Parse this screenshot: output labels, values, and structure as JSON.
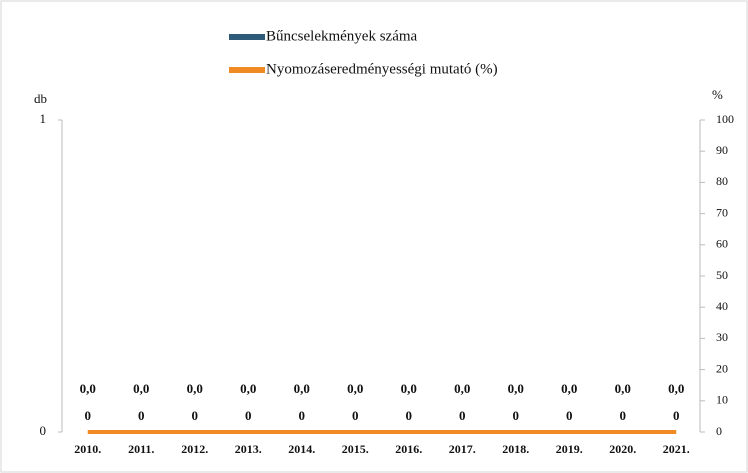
{
  "chart_data": {
    "type": "bar-line",
    "categories": [
      "2010.",
      "2011.",
      "2012.",
      "2013.",
      "2014.",
      "2015.",
      "2016.",
      "2017.",
      "2018.",
      "2019.",
      "2020.",
      "2021."
    ],
    "y_label": "db",
    "y2_label": "%",
    "series": [
      {
        "name": "Bűncselekmények száma",
        "type": "bar",
        "color": "#2e5b7a",
        "values": [
          0,
          0,
          0,
          0,
          0,
          0,
          0,
          0,
          0,
          0,
          0,
          0
        ]
      },
      {
        "name": "Nyomozáseredményességi mutató (%)",
        "type": "line",
        "axis": "y2",
        "color": "#f08a24",
        "values": [
          0,
          0,
          0,
          0,
          0,
          0,
          0,
          0,
          0,
          0,
          0,
          0
        ],
        "value_labels": [
          "0,0",
          "0,0",
          "0,0",
          "0,0",
          "0,0",
          "0,0",
          "0,0",
          "0,0",
          "0,0",
          "0,0",
          "0,0",
          "0,0"
        ]
      }
    ],
    "ylim": [
      0,
      1
    ],
    "yticks": [
      0,
      1
    ],
    "y2lim": [
      0,
      100
    ],
    "y2ticks": [
      0,
      10,
      20,
      30,
      40,
      50,
      60,
      70,
      80,
      90,
      100
    ],
    "grid": false,
    "legend": "top"
  }
}
